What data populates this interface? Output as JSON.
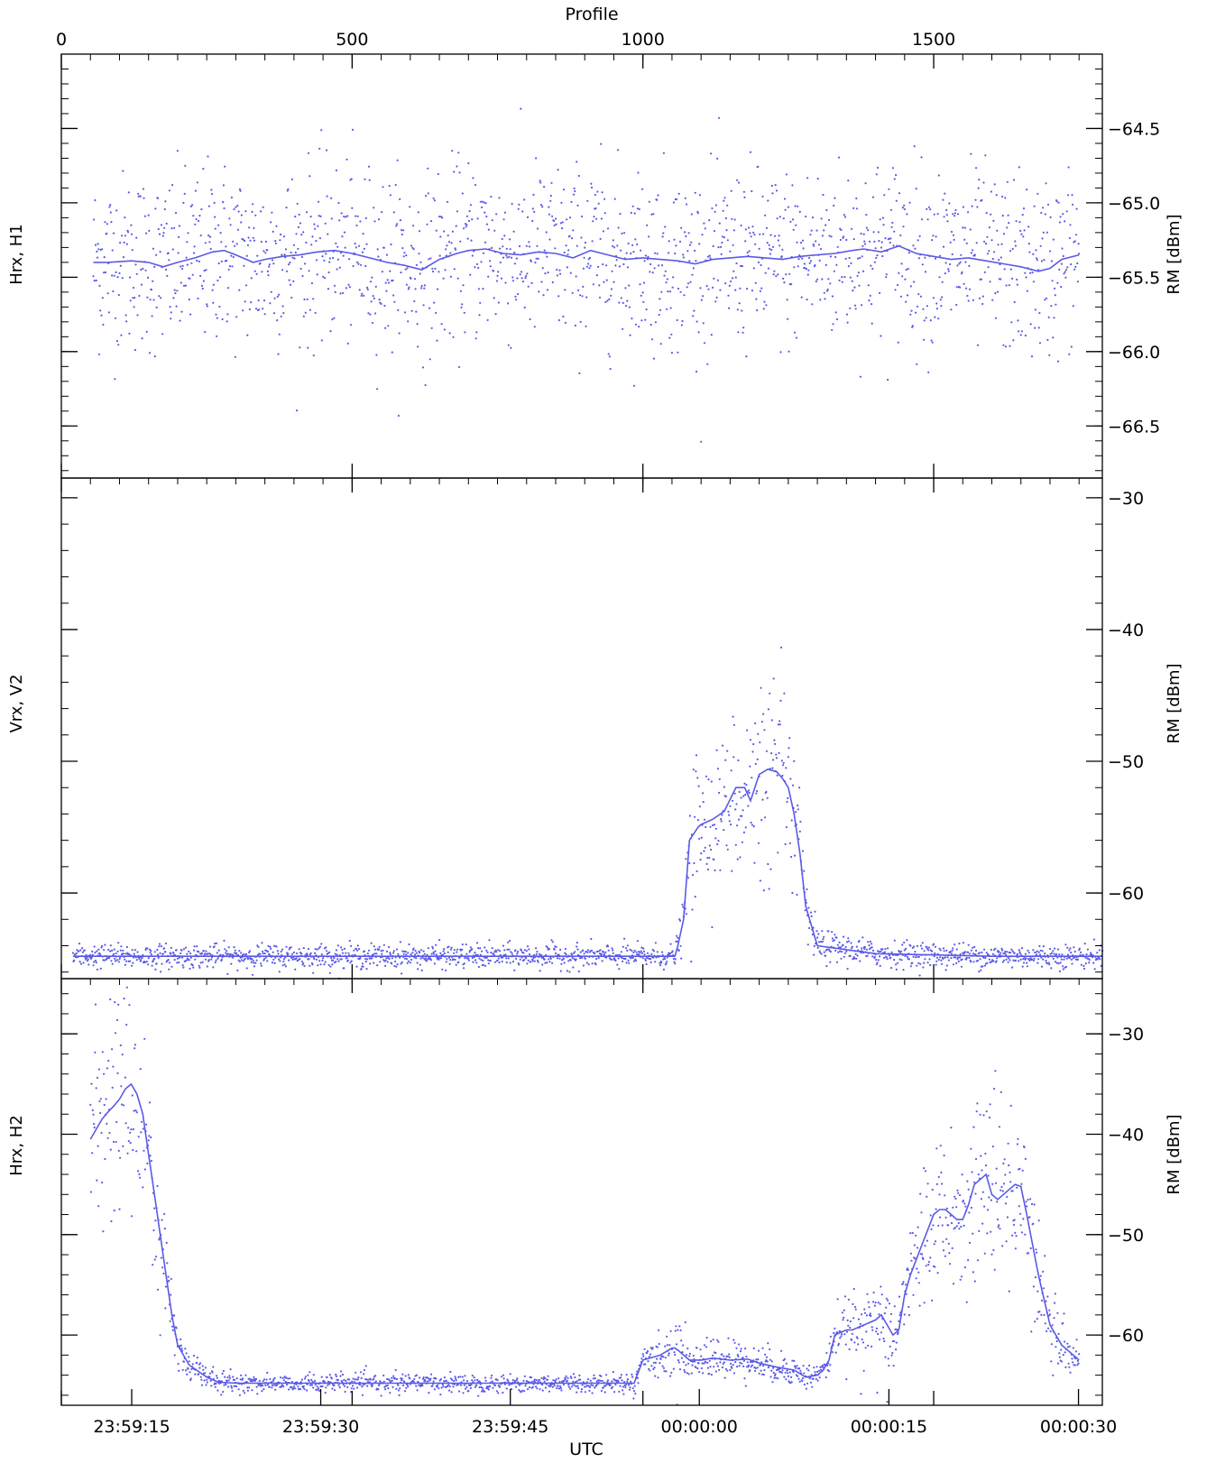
{
  "figure": {
    "top_axis_label": "Profile",
    "bottom_axis_label": "UTC",
    "line_color": "#5a5ae6",
    "dot_color": "#5a5ae6",
    "axis_color": "#000000"
  },
  "chart_data": [
    {
      "type": "scatter",
      "left_label": "Hrx, H1",
      "ylabel": "RM [dBm]",
      "x_top_ticks": [
        "0",
        "500",
        "1000",
        "1500"
      ],
      "x_top_tick_values": [
        0,
        500,
        1000,
        1500
      ],
      "x_top_range": [
        0,
        1790
      ],
      "yticks": [
        "-64.5",
        "-65.0",
        "-65.5",
        "-66.0",
        "-66.5"
      ],
      "ytick_values": [
        -64.5,
        -65.0,
        -65.5,
        -66.0,
        -66.5
      ],
      "ylim": [
        -66.85,
        -64.0
      ],
      "scatter_profile": [
        0,
        1790
      ],
      "scatter_center": -65.4,
      "scatter_spread": 0.3,
      "scatter_step": 1,
      "series": [
        {
          "kind": "smoothed-line",
          "x": [
            55,
            80,
            120,
            150,
            175,
            200,
            230,
            260,
            280,
            300,
            330,
            350,
            380,
            410,
            440,
            470,
            500,
            530,
            560,
            590,
            620,
            650,
            680,
            700,
            730,
            760,
            790,
            820,
            850,
            880,
            910,
            940,
            970,
            1000,
            1030,
            1060,
            1090,
            1120,
            1150,
            1180,
            1210,
            1240,
            1270,
            1300,
            1330,
            1360,
            1380,
            1410,
            1440,
            1470,
            1500,
            1530,
            1560,
            1590,
            1620,
            1650,
            1680,
            1700,
            1720,
            1750
          ],
          "y": [
            -65.4,
            -65.4,
            -65.39,
            -65.4,
            -65.43,
            -65.4,
            -65.37,
            -65.33,
            -65.32,
            -65.35,
            -65.4,
            -65.38,
            -65.36,
            -65.35,
            -65.33,
            -65.32,
            -65.34,
            -65.37,
            -65.4,
            -65.42,
            -65.45,
            -65.38,
            -65.34,
            -65.32,
            -65.31,
            -65.34,
            -65.35,
            -65.33,
            -65.34,
            -65.37,
            -65.32,
            -65.35,
            -65.38,
            -65.37,
            -65.38,
            -65.39,
            -65.41,
            -65.38,
            -65.37,
            -65.36,
            -65.37,
            -65.38,
            -65.36,
            -65.35,
            -65.34,
            -65.32,
            -65.31,
            -65.33,
            -65.29,
            -65.34,
            -65.36,
            -65.38,
            -65.37,
            -65.39,
            -65.41,
            -65.43,
            -65.46,
            -65.44,
            -65.38,
            -65.35
          ]
        }
      ]
    },
    {
      "type": "scatter",
      "left_label": "Vrx, V2",
      "ylabel": "RM [dBm]",
      "yticks": [
        "-30",
        "-40",
        "-50",
        "-60"
      ],
      "ytick_values": [
        -30,
        -40,
        -50,
        -60
      ],
      "ylim": [
        -66.5,
        -28.5
      ],
      "series": [
        {
          "kind": "smoothed-line",
          "x": [
            20,
            50,
            100,
            200,
            300,
            400,
            500,
            600,
            700,
            800,
            900,
            1000,
            1050,
            1055,
            1060,
            1070,
            1080,
            1095,
            1100,
            1120,
            1140,
            1160,
            1175,
            1185,
            1200,
            1215,
            1230,
            1240,
            1250,
            1260,
            1270,
            1280,
            1300,
            1400,
            1500,
            1600,
            1700,
            1790
          ],
          "y": [
            -64.8,
            -64.8,
            -64.8,
            -64.8,
            -64.8,
            -64.8,
            -64.8,
            -64.8,
            -64.8,
            -64.8,
            -64.8,
            -64.8,
            -64.8,
            -64.8,
            -64.0,
            -62.0,
            -56.0,
            -55.0,
            -54.8,
            -54.4,
            -53.8,
            -52.0,
            -52.0,
            -53.0,
            -51.0,
            -50.6,
            -50.8,
            -51.3,
            -52.0,
            -54.0,
            -57.0,
            -61.0,
            -64.0,
            -64.6,
            -64.7,
            -64.8,
            -64.8,
            -64.8
          ]
        }
      ]
    },
    {
      "type": "scatter",
      "left_label": "Hrx, H2",
      "ylabel": "RM [dBm]",
      "yticks": [
        "-30",
        "-40",
        "-50",
        "-60"
      ],
      "ytick_values": [
        -30,
        -40,
        -50,
        -60
      ],
      "ylim": [
        -67.0,
        -24.5
      ],
      "x_bottom_ticks": [
        "23:59:15",
        "23:59:30",
        "23:59:45",
        "00:00:00",
        "00:00:15",
        "00:00:30"
      ],
      "x_bottom_tick_values": [
        121,
        446,
        772,
        1097,
        1423,
        1749
      ],
      "x_bottom_range": [
        0,
        1790
      ],
      "series": [
        {
          "kind": "smoothed-line",
          "x": [
            50,
            60,
            70,
            80,
            90,
            100,
            110,
            120,
            130,
            140,
            150,
            160,
            170,
            180,
            190,
            200,
            220,
            250,
            270,
            300,
            400,
            500,
            600,
            700,
            800,
            900,
            980,
            985,
            1000,
            1030,
            1050,
            1055,
            1060,
            1070,
            1080,
            1100,
            1120,
            1150,
            1180,
            1200,
            1230,
            1260,
            1280,
            1300,
            1310,
            1320,
            1330,
            1350,
            1360,
            1380,
            1400,
            1410,
            1420,
            1430,
            1440,
            1450,
            1460,
            1480,
            1490,
            1500,
            1510,
            1520,
            1530,
            1540,
            1550,
            1560,
            1570,
            1590,
            1600,
            1610,
            1620,
            1630,
            1640,
            1650,
            1660,
            1680,
            1700,
            1720,
            1750
          ],
          "y": [
            -40.5,
            -39.5,
            -38.5,
            -37.8,
            -37.2,
            -36.5,
            -35.5,
            -35.0,
            -36.0,
            -38.0,
            -42.0,
            -46.0,
            -50.0,
            -54.0,
            -58.0,
            -61.0,
            -63.0,
            -64.2,
            -64.7,
            -64.8,
            -64.8,
            -64.8,
            -64.8,
            -64.8,
            -64.8,
            -64.8,
            -64.8,
            -64.8,
            -62.5,
            -62.0,
            -61.3,
            -61.3,
            -61.5,
            -62.0,
            -62.5,
            -62.5,
            -62.3,
            -62.5,
            -62.4,
            -62.8,
            -63.2,
            -63.5,
            -64.2,
            -64.0,
            -63.5,
            -62.5,
            -60.0,
            -59.5,
            -59.5,
            -59.0,
            -58.5,
            -58.0,
            -59.0,
            -60.0,
            -59.5,
            -56.0,
            -54.0,
            -51.0,
            -49.5,
            -48.0,
            -47.5,
            -47.5,
            -48.0,
            -48.5,
            -48.5,
            -47.0,
            -45.0,
            -44.0,
            -46.0,
            -46.5,
            -46.0,
            -45.5,
            -45.0,
            -45.2,
            -48.0,
            -54.0,
            -59.0,
            -61.0,
            -62.5
          ]
        }
      ]
    }
  ]
}
